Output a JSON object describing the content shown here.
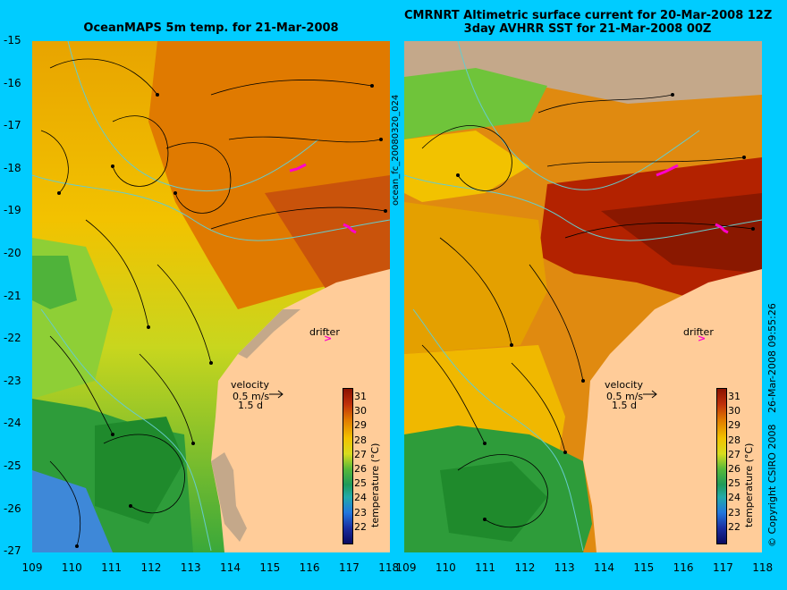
{
  "left_panel": {
    "title": "OceanMAPS 5m temp. for 21-Mar-2008",
    "run_label": "ocean_fc_20080320_024"
  },
  "right_panel": {
    "title_line1": "CMRNRT Altimetric surface current for 20-Mar-2008 12Z",
    "title_line2": "3day AVHRR SST for 21-Mar-2008 00Z"
  },
  "axes": {
    "y_ticks": [
      "-15",
      "-16",
      "-17",
      "-18",
      "-19",
      "-20",
      "-21",
      "-22",
      "-23",
      "-24",
      "-25",
      "-26",
      "-27"
    ],
    "x_ticks": [
      "109",
      "110",
      "111",
      "112",
      "113",
      "114",
      "115",
      "116",
      "117",
      "118"
    ]
  },
  "legend": {
    "drifter": "drifter",
    "velocity": "velocity",
    "speed": "0.5 m/s",
    "duration": "1.5 d"
  },
  "colorbar": {
    "title": "temperature (°C)",
    "ticks": [
      "31",
      "30",
      "29",
      "28",
      "27",
      "26",
      "25",
      "24",
      "23",
      "22"
    ]
  },
  "copyright": "© Copyright CSIRO 2008",
  "timestamp": "26-Mar-2008 09:55:26",
  "colors": {
    "background": "#00ccff",
    "land": "#ffcc99",
    "hot": "#b32200",
    "warm": "#e07a00",
    "mid": "#f0b800",
    "cool": "#7ad23a",
    "cold": "#3377dd",
    "coast": "#66cccc",
    "drifter": "#ff00cc"
  }
}
